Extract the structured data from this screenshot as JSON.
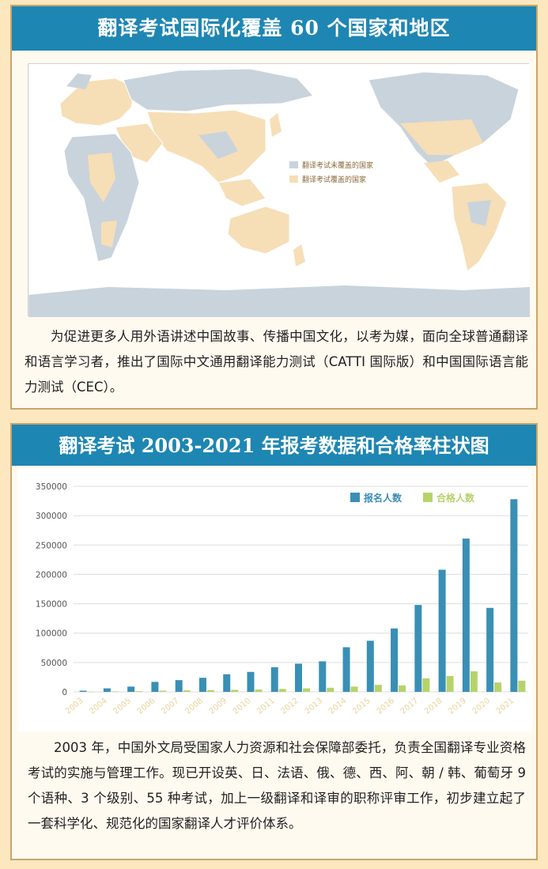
{
  "section1": {
    "title": "翻译考试国际化覆盖 60 个国家和地区",
    "legend": [
      {
        "label": "翻译考试未覆盖的国家",
        "color": "#c9d3dc"
      },
      {
        "label": "翻译考试覆盖的国家",
        "color": "#f6deb6"
      }
    ],
    "paragraph": "为促进更多人用外语讲述中国故事、传播中国文化，以考为媒，面向全球普通翻译和语言学习者，推出了国际中文通用翻译能力测试（CATTI 国际版）和中国国际语言能力测试（CEC）。"
  },
  "section2": {
    "title": "翻译考试 2003-2021 年报考数据和合格率柱状图",
    "paragraph": "2003 年，中国外文局受国家人力资源和社会保障部委托，负责全国翻译专业资格考试的实施与管理工作。现已开设英、日、法语、俄、德、西、阿、朝 / 韩、葡萄牙 9 个语种、3 个级别、55 种考试，加上一级翻译和译审的职称评审工作，初步建立起了一套科学化、规范化的国家翻译人才评价体系。"
  },
  "chart_data": {
    "type": "bar",
    "categories": [
      "2003",
      "2004",
      "2005",
      "2006",
      "2007",
      "2008",
      "2009",
      "2010",
      "2011",
      "2012",
      "2013",
      "2014",
      "2015",
      "2016",
      "2017",
      "2018",
      "2019",
      "2020",
      "2021"
    ],
    "series": [
      {
        "name": "报名人数",
        "color": "#3a8fb5",
        "values": [
          2000,
          6000,
          9000,
          17000,
          20000,
          24000,
          30000,
          34000,
          42000,
          48000,
          52000,
          76000,
          87000,
          108000,
          148000,
          208000,
          261000,
          143000,
          328000
        ]
      },
      {
        "name": "合格人数",
        "color": "#b6d36b",
        "values": [
          300,
          800,
          1200,
          2000,
          2500,
          3000,
          3500,
          4000,
          5000,
          6000,
          7000,
          9000,
          12000,
          11000,
          23000,
          27000,
          35000,
          16000,
          19000
        ]
      }
    ],
    "ylim": [
      0,
      350000
    ],
    "yticks": [
      "0",
      "50000",
      "100000",
      "150000",
      "200000",
      "250000",
      "300000",
      "350000"
    ],
    "grid": true,
    "legend_position": "top-right"
  }
}
